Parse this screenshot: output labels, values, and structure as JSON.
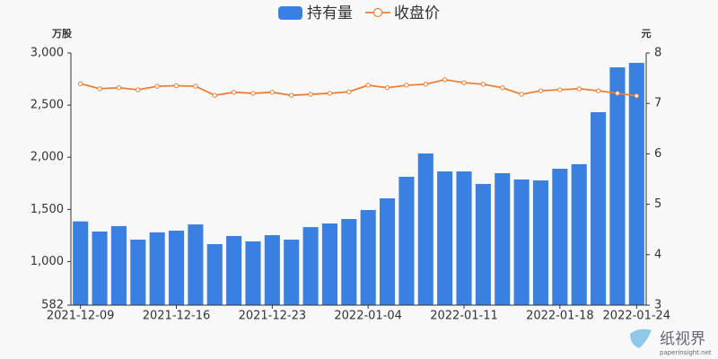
{
  "chart_data": {
    "type": "bar",
    "legend": "top",
    "y_unit": "万股",
    "y2_unit": "元",
    "categories": [
      "2021-12-09",
      null,
      null,
      null,
      null,
      "2021-12-16",
      null,
      null,
      null,
      null,
      "2021-12-23",
      null,
      null,
      null,
      null,
      "2022-01-04",
      null,
      null,
      null,
      null,
      "2022-01-11",
      null,
      null,
      null,
      null,
      "2022-01-18",
      null,
      null,
      null,
      "2022-01-24"
    ],
    "series": [
      {
        "name": "持有量",
        "type": "bar",
        "color": "#3a80e0",
        "axis": "y",
        "values": [
          1385,
          1288,
          1340,
          1210,
          1280,
          1296,
          1356,
          1167,
          1245,
          1193,
          1253,
          1210,
          1330,
          1365,
          1408,
          1494,
          1606,
          1813,
          2036,
          1864,
          1864,
          1744,
          1847,
          1787,
          1778,
          1890,
          1933,
          2432,
          2862,
          2905
        ]
      },
      {
        "name": "收盘价",
        "type": "line",
        "color": "#e8803a",
        "axis": "y2",
        "values": [
          7.39,
          7.29,
          7.31,
          7.27,
          7.34,
          7.35,
          7.34,
          7.16,
          7.22,
          7.2,
          7.22,
          7.16,
          7.18,
          7.2,
          7.23,
          7.36,
          7.31,
          7.36,
          7.38,
          7.47,
          7.41,
          7.38,
          7.31,
          7.18,
          7.25,
          7.27,
          7.29,
          7.25,
          7.2,
          7.15
        ]
      }
    ],
    "ylim": [
      582,
      3000
    ],
    "yticks": [
      582,
      {
        "value": 1000,
        "label": "1,000"
      },
      {
        "value": 1500,
        "label": "1,500"
      },
      {
        "value": 2000,
        "label": "2,000"
      },
      {
        "value": 2500,
        "label": "2,500"
      },
      {
        "value": 3000,
        "label": "3,000"
      }
    ],
    "y2lim": [
      3,
      8
    ],
    "y2ticks": [
      3,
      4,
      5,
      6,
      7,
      8
    ]
  },
  "watermark": {
    "name": "纸视界",
    "url": "paperinsight.net"
  }
}
